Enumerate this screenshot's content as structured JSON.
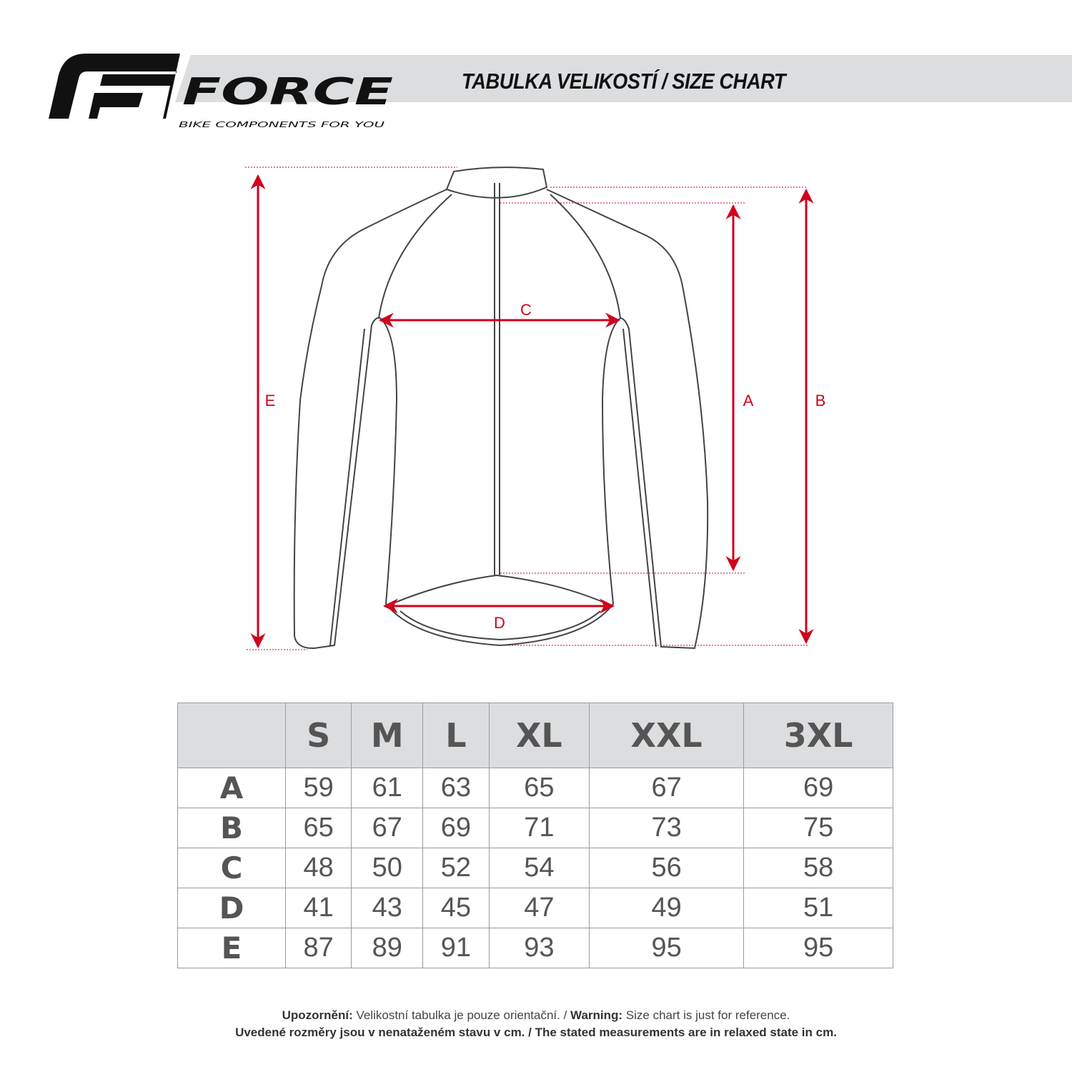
{
  "header": {
    "brand": "FORCE",
    "tagline": "BIKE COMPONENTS FOR YOU",
    "title": "TABULKA VELIKOSTÍ / SIZE CHART"
  },
  "diagram": {
    "labels": {
      "A": "A",
      "B": "B",
      "C": "C",
      "D": "D",
      "E": "E"
    },
    "accent_color": "#d0021b"
  },
  "table": {
    "sizes": [
      "S",
      "M",
      "L",
      "XL",
      "XXL",
      "3XL"
    ],
    "rows": [
      {
        "label": "A",
        "values": [
          "59",
          "61",
          "63",
          "65",
          "67",
          "69"
        ]
      },
      {
        "label": "B",
        "values": [
          "65",
          "67",
          "69",
          "71",
          "73",
          "75"
        ]
      },
      {
        "label": "C",
        "values": [
          "48",
          "50",
          "52",
          "54",
          "56",
          "58"
        ]
      },
      {
        "label": "D",
        "values": [
          "41",
          "43",
          "45",
          "47",
          "49",
          "51"
        ]
      },
      {
        "label": "E",
        "values": [
          "87",
          "89",
          "91",
          "93",
          "95",
          "95"
        ]
      }
    ]
  },
  "footer": {
    "line1_bold1": "Upozornění:",
    "line1_text1": " Velikostní tabulka je pouze orientační. / ",
    "line1_bold2": "Warning:",
    "line1_text2": " Size chart is just for reference.",
    "line2": "Uvedené rozměry jsou v nenataženém stavu v cm. / The stated measurements are in relaxed state in cm."
  }
}
